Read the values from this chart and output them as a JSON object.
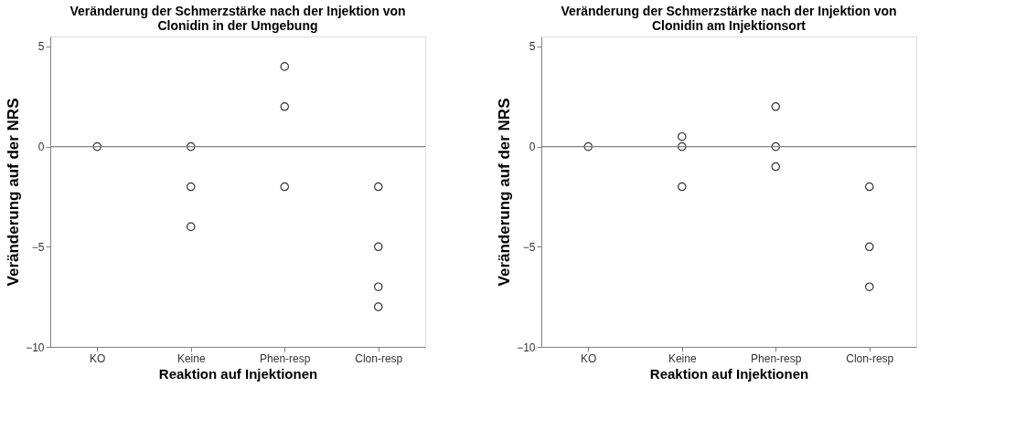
{
  "chart_data": [
    {
      "type": "scatter",
      "title": "Veränderung der Schmerzstärke nach der Injektion von Clonidin in der Umgebung",
      "xlabel": "Reaktion auf Injektionen",
      "ylabel": "Veränderung auf der NRS",
      "categories": [
        "KO",
        "Keine",
        "Phen-resp",
        "Clon-resp"
      ],
      "series": [
        {
          "color": "#333333",
          "x": [
            "KO",
            "Keine",
            "Keine",
            "Keine",
            "Phen-resp",
            "Phen-resp",
            "Phen-resp",
            "Clon-resp",
            "Clon-resp",
            "Clon-resp",
            "Clon-resp"
          ],
          "values": [
            0,
            0,
            -2,
            -4,
            4,
            2,
            -2,
            -2,
            -5,
            -7,
            -8
          ]
        }
      ],
      "ylim": [
        -10,
        5.5
      ],
      "yticks": [
        -10,
        -5,
        0,
        5
      ],
      "ref_lines": [
        {
          "axis": "y",
          "value": 0,
          "color": "#808080"
        }
      ],
      "grid": false,
      "marker": "circle"
    },
    {
      "type": "scatter",
      "title": "Veränderung der Schmerzstärke nach der Injektion von Clonidin am Injektionsort",
      "xlabel": "Reaktion auf Injektionen",
      "ylabel": "Veränderung auf der NRS",
      "categories": [
        "KO",
        "Keine",
        "Phen-resp",
        "Clon-resp"
      ],
      "series": [
        {
          "color": "#333333",
          "x": [
            "KO",
            "Keine",
            "Keine",
            "Keine",
            "Phen-resp",
            "Phen-resp",
            "Phen-resp",
            "Clon-resp",
            "Clon-resp",
            "Clon-resp"
          ],
          "values": [
            0,
            0.5,
            0,
            -2,
            2,
            0,
            -1,
            -2,
            -5,
            -7
          ]
        }
      ],
      "ylim": [
        -10,
        5.5
      ],
      "yticks": [
        -10,
        -5,
        0,
        5
      ],
      "ref_lines": [
        {
          "axis": "y",
          "value": 0,
          "color": "#808080"
        }
      ],
      "grid": false,
      "marker": "circle"
    }
  ]
}
